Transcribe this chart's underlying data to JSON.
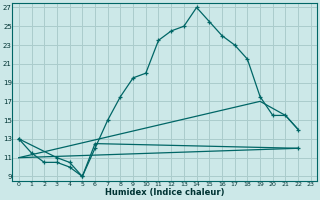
{
  "xlabel": "Humidex (Indice chaleur)",
  "bg_color": "#cce8e8",
  "grid_color": "#aacccc",
  "line_color": "#006666",
  "xlim": [
    -0.5,
    23.5
  ],
  "ylim": [
    8.5,
    27.5
  ],
  "yticks": [
    9,
    11,
    13,
    15,
    17,
    19,
    21,
    23,
    25,
    27
  ],
  "xticks": [
    0,
    1,
    2,
    3,
    4,
    5,
    6,
    7,
    8,
    9,
    10,
    11,
    12,
    13,
    14,
    15,
    16,
    17,
    18,
    19,
    20,
    21,
    22,
    23
  ],
  "line1_x": [
    0,
    1,
    2,
    3,
    4,
    5,
    6,
    7,
    8,
    9,
    10,
    11,
    12,
    13,
    14,
    15,
    16,
    17,
    18,
    19,
    20,
    21,
    22
  ],
  "line1_y": [
    13,
    11.5,
    10.5,
    10.5,
    10,
    9,
    12,
    15,
    17.5,
    19.5,
    20,
    23.5,
    24.5,
    25,
    27,
    25.5,
    24,
    23,
    21.5,
    17.5,
    15.5,
    15.5,
    14
  ],
  "line2_x": [
    0,
    3,
    4,
    5,
    6,
    22
  ],
  "line2_y": [
    13,
    11,
    10.5,
    9,
    12.5,
    12
  ],
  "line3_x": [
    0,
    22
  ],
  "line3_y": [
    11,
    12
  ],
  "line4_x": [
    0,
    19,
    21,
    22
  ],
  "line4_y": [
    11,
    17,
    15.5,
    14
  ]
}
